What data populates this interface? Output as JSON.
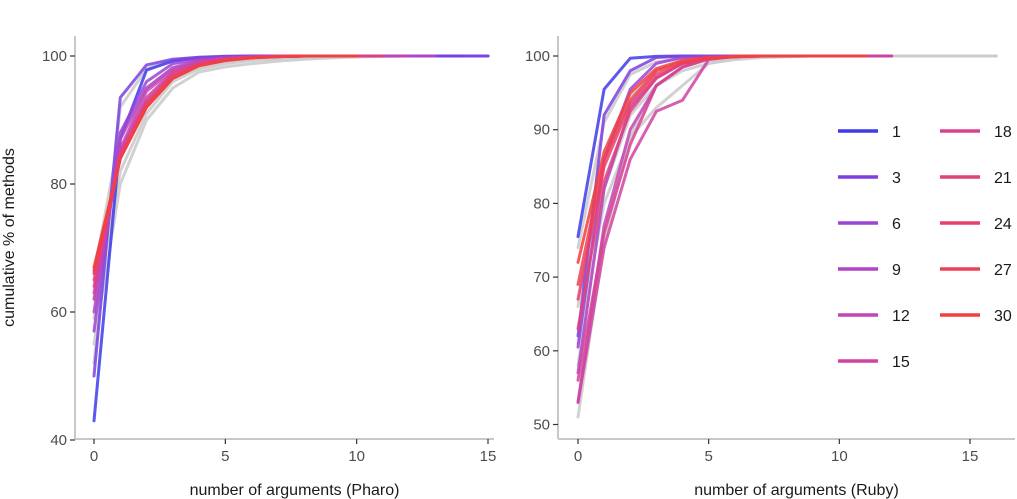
{
  "chart_data": [
    {
      "type": "line",
      "panel": "left",
      "xlabel": "number of arguments (Pharo)",
      "ylabel": "cumulative % of methods",
      "xlim": [
        -0.5,
        15.5
      ],
      "ylim": [
        40,
        102
      ],
      "xticks": [
        0,
        5,
        10,
        15
      ],
      "yticks": [
        40,
        60,
        80,
        100
      ],
      "grid": false,
      "background_series_color": "#cccccc",
      "background_series": [
        {
          "x": [
            0,
            1,
            2,
            3,
            4,
            5,
            6,
            7,
            8,
            9,
            10,
            11,
            12,
            13,
            14
          ],
          "y": [
            55,
            80,
            90,
            95,
            97.5,
            98.3,
            98.8,
            99.2,
            99.5,
            99.7,
            99.85,
            99.95,
            100,
            100,
            100
          ]
        },
        {
          "x": [
            0,
            1,
            2,
            3,
            4,
            5,
            6,
            7,
            8,
            9,
            10,
            11,
            12,
            13,
            14
          ],
          "y": [
            62,
            85,
            93,
            96.5,
            98.2,
            99,
            99.4,
            99.6,
            99.8,
            99.9,
            100,
            100,
            100,
            100,
            100
          ]
        },
        {
          "x": [
            0,
            1,
            2,
            3,
            4,
            5,
            6,
            7,
            8,
            9,
            10,
            11,
            12,
            13,
            14
          ],
          "y": [
            59,
            82,
            91,
            96,
            98,
            98.8,
            99.3,
            99.6,
            99.8,
            99.9,
            100,
            100,
            100,
            100,
            100
          ]
        },
        {
          "x": [
            0,
            1,
            2,
            3,
            4,
            5,
            6,
            7,
            8,
            9,
            10,
            11,
            12,
            13,
            14
          ],
          "y": [
            66,
            88,
            95,
            98,
            99.2,
            99.6,
            99.8,
            99.9,
            100,
            100,
            100,
            100,
            100,
            100,
            100
          ]
        },
        {
          "x": [
            0,
            1,
            2,
            3,
            4,
            5,
            6,
            7,
            8,
            9,
            10,
            11,
            12,
            13,
            14
          ],
          "y": [
            52,
            92,
            98,
            99.4,
            99.8,
            100,
            100,
            100,
            100,
            100,
            100,
            100,
            100,
            100,
            100
          ]
        }
      ],
      "series": [
        {
          "name": "1",
          "color": "#3d3bea",
          "x": [
            0,
            1,
            2,
            3,
            4,
            5,
            6,
            7,
            8,
            9,
            10,
            11,
            12,
            13,
            14,
            15
          ],
          "y": [
            43,
            87,
            97.8,
            99.2,
            99.7,
            99.9,
            100,
            100,
            100,
            100,
            100,
            100,
            100,
            100,
            100,
            100
          ]
        },
        {
          "name": "3",
          "color": "#7d3fe0",
          "x": [
            0,
            1,
            2,
            3,
            4,
            5,
            6,
            7,
            8,
            9,
            10,
            11,
            12,
            13,
            14,
            15
          ],
          "y": [
            50,
            93.5,
            98.6,
            99.5,
            99.8,
            99.95,
            100,
            100,
            100,
            100,
            100,
            100,
            100,
            100,
            100,
            100
          ]
        },
        {
          "name": "6",
          "color": "#9b44d6",
          "x": [
            0,
            1,
            2,
            3,
            4,
            5,
            6,
            7,
            8,
            9,
            10,
            11,
            12,
            13
          ],
          "y": [
            57,
            88,
            96,
            98.8,
            99.5,
            99.8,
            99.9,
            100,
            100,
            100,
            100,
            100,
            100,
            100
          ]
        },
        {
          "name": "9",
          "color": "#b044c8",
          "x": [
            0,
            1,
            2,
            3,
            4,
            5,
            6,
            7,
            8,
            9,
            10,
            11,
            12,
            13
          ],
          "y": [
            60,
            87,
            95,
            98.2,
            99.3,
            99.7,
            99.9,
            100,
            100,
            100,
            100,
            100,
            100,
            100
          ]
        },
        {
          "name": "12",
          "color": "#c244b6",
          "x": [
            0,
            1,
            2,
            3,
            4,
            5,
            6,
            7,
            8,
            9,
            10,
            11,
            12
          ],
          "y": [
            62,
            85.5,
            94.5,
            97.8,
            99.1,
            99.6,
            99.85,
            99.95,
            100,
            100,
            100,
            100,
            100
          ]
        },
        {
          "name": "15",
          "color": "#cf43a2",
          "x": [
            0,
            1,
            2,
            3,
            4,
            5,
            6,
            7,
            8,
            9,
            10,
            11
          ],
          "y": [
            63,
            85,
            93.5,
            97.5,
            99,
            99.6,
            99.85,
            99.95,
            100,
            100,
            100,
            100
          ]
        },
        {
          "name": "18",
          "color": "#d84290",
          "x": [
            0,
            1,
            2,
            3,
            4,
            5,
            6,
            7,
            8,
            9,
            10,
            11
          ],
          "y": [
            64,
            84.5,
            93,
            97.3,
            98.8,
            99.5,
            99.8,
            99.95,
            100,
            100,
            100,
            100
          ]
        },
        {
          "name": "21",
          "color": "#e1417c",
          "x": [
            0,
            1,
            2,
            3,
            4,
            5,
            6,
            7,
            8,
            9,
            10,
            11
          ],
          "y": [
            65,
            84,
            92.5,
            97,
            98.7,
            99.4,
            99.8,
            99.9,
            100,
            100,
            100,
            100
          ]
        },
        {
          "name": "24",
          "color": "#e94069",
          "x": [
            0,
            1,
            2,
            3,
            4,
            5,
            6,
            7,
            8,
            9,
            10
          ],
          "y": [
            66,
            84,
            92.5,
            96.8,
            98.6,
            99.4,
            99.75,
            99.9,
            100,
            100,
            100
          ]
        },
        {
          "name": "27",
          "color": "#ef3f56",
          "x": [
            0,
            1,
            2,
            3,
            4,
            5,
            6,
            7,
            8,
            9,
            10
          ],
          "y": [
            66.5,
            84,
            92,
            96.5,
            98.5,
            99.3,
            99.7,
            99.9,
            100,
            100,
            100
          ]
        },
        {
          "name": "30",
          "color": "#f23f3f",
          "x": [
            0,
            1,
            2,
            3,
            4,
            5,
            6,
            7,
            8,
            9,
            10
          ],
          "y": [
            67,
            84,
            92,
            96.5,
            98.5,
            99.3,
            99.7,
            99.9,
            100,
            100,
            100
          ]
        }
      ]
    },
    {
      "type": "line",
      "panel": "right",
      "xlabel": "number of arguments (Ruby)",
      "ylabel": "",
      "xlim": [
        -0.5,
        16.5
      ],
      "ylim": [
        48.5,
        102
      ],
      "xticks": [
        0,
        5,
        10,
        15
      ],
      "yticks": [
        50,
        60,
        70,
        80,
        90,
        100
      ],
      "grid": false,
      "legend": {
        "position": "right",
        "columns": 2
      },
      "background_series_color": "#cccccc",
      "background_series": [
        {
          "x": [
            0,
            1,
            2,
            3,
            4,
            5,
            6,
            7,
            8,
            9,
            10,
            11,
            12,
            13,
            14,
            15,
            16
          ],
          "y": [
            51,
            75,
            89,
            96,
            98.5,
            99.5,
            99.8,
            99.9,
            100,
            100,
            100,
            100,
            100,
            100,
            100,
            100,
            100
          ]
        },
        {
          "x": [
            0,
            1,
            2,
            3,
            4,
            5,
            6,
            7,
            8,
            9,
            10,
            11,
            12,
            13,
            14,
            15,
            16
          ],
          "y": [
            58,
            82,
            92,
            96,
            98,
            99,
            99.5,
            99.8,
            99.9,
            100,
            100,
            100,
            100,
            100,
            100,
            100,
            100
          ]
        },
        {
          "x": [
            0,
            1,
            2,
            3,
            4,
            5,
            6,
            7,
            8,
            9,
            10,
            11,
            12,
            13,
            14,
            15,
            16
          ],
          "y": [
            66,
            86,
            94.5,
            98,
            99.3,
            99.7,
            99.9,
            100,
            100,
            100,
            100,
            100,
            100,
            100,
            100,
            100,
            100
          ]
        },
        {
          "x": [
            0,
            1,
            2,
            3,
            4,
            5,
            6,
            7,
            8,
            9,
            10,
            11,
            12,
            13,
            14,
            15,
            16
          ],
          "y": [
            74,
            91,
            97.5,
            99.2,
            99.7,
            99.9,
            100,
            100,
            100,
            100,
            100,
            100,
            100,
            100,
            100,
            100,
            100
          ]
        },
        {
          "x": [
            0,
            1,
            2,
            3,
            4,
            5,
            6,
            7,
            8,
            9,
            10,
            11,
            12,
            13,
            14
          ],
          "y": [
            61,
            80,
            89,
            93,
            96,
            99,
            99.7,
            99.9,
            100,
            100,
            100,
            100,
            100,
            100,
            100
          ]
        }
      ],
      "series": [
        {
          "name": "1",
          "color": "#3d3bea",
          "x": [
            0,
            1,
            2,
            3,
            4,
            5,
            6,
            7,
            8,
            9,
            10,
            11
          ],
          "y": [
            75.5,
            95.5,
            99.7,
            99.95,
            100,
            100,
            100,
            100,
            100,
            100,
            100,
            100
          ]
        },
        {
          "name": "3",
          "color": "#7d3fe0",
          "x": [
            0,
            1,
            2,
            3,
            4,
            5,
            6,
            7,
            8,
            9,
            10,
            11
          ],
          "y": [
            62,
            92,
            98,
            99.8,
            100,
            100,
            100,
            100,
            100,
            100,
            100,
            100
          ]
        },
        {
          "name": "6",
          "color": "#9b44d6",
          "x": [
            0,
            1,
            2,
            3,
            4,
            5,
            6,
            7,
            8,
            9,
            10,
            11,
            12
          ],
          "y": [
            60.5,
            86,
            95.5,
            99,
            99.8,
            100,
            100,
            100,
            100,
            100,
            100,
            100,
            100
          ]
        },
        {
          "name": "9",
          "color": "#b044c8",
          "x": [
            0,
            1,
            2,
            3,
            4,
            5,
            6,
            7,
            8,
            9,
            10,
            11,
            12
          ],
          "y": [
            57,
            82,
            93,
            97,
            99,
            99.8,
            100,
            100,
            100,
            100,
            100,
            100,
            100
          ]
        },
        {
          "name": "12",
          "color": "#c244b6",
          "x": [
            0,
            1,
            2,
            3,
            4,
            5,
            6,
            7,
            8,
            9,
            10,
            11,
            12
          ],
          "y": [
            53,
            77,
            90,
            96,
            98.5,
            99.7,
            100,
            100,
            100,
            100,
            100,
            100,
            100
          ]
        },
        {
          "name": "15",
          "color": "#cf43a2",
          "x": [
            0,
            1,
            2,
            3,
            4,
            5,
            6,
            7,
            8,
            9,
            10,
            11,
            12
          ],
          "y": [
            53,
            74,
            86,
            92.5,
            94,
            99.5,
            100,
            100,
            100,
            100,
            100,
            100,
            100
          ]
        },
        {
          "name": "18",
          "color": "#d84290",
          "x": [
            0,
            1,
            2,
            3,
            4,
            5,
            6,
            7,
            8,
            9,
            10,
            11
          ],
          "y": [
            56,
            76,
            88,
            96,
            98.5,
            99.6,
            99.9,
            100,
            100,
            100,
            100,
            100
          ]
        },
        {
          "name": "21",
          "color": "#e1417c",
          "x": [
            0,
            1,
            2,
            3,
            4,
            5,
            6,
            7,
            8,
            9,
            10,
            11
          ],
          "y": [
            63,
            83,
            92.5,
            97,
            99,
            99.7,
            100,
            100,
            100,
            100,
            100,
            100
          ]
        },
        {
          "name": "24",
          "color": "#e94069",
          "x": [
            0,
            1,
            2,
            3,
            4,
            5,
            6,
            7,
            8,
            9,
            10,
            11
          ],
          "y": [
            67,
            85,
            93.5,
            97.5,
            99,
            99.7,
            99.9,
            100,
            100,
            100,
            100,
            100
          ]
        },
        {
          "name": "27",
          "color": "#ef3f56",
          "x": [
            0,
            1,
            2,
            3,
            4,
            5,
            6,
            7,
            8,
            9,
            10,
            11
          ],
          "y": [
            69,
            86,
            94,
            98,
            99.2,
            99.7,
            99.9,
            100,
            100,
            100,
            100,
            100
          ]
        },
        {
          "name": "30",
          "color": "#f23f3f",
          "x": [
            0,
            1,
            2,
            3,
            4,
            5,
            6,
            7,
            8,
            9,
            10,
            11
          ],
          "y": [
            72,
            87,
            95,
            98.3,
            99.4,
            99.8,
            99.9,
            100,
            100,
            100,
            100,
            100
          ]
        }
      ]
    }
  ]
}
